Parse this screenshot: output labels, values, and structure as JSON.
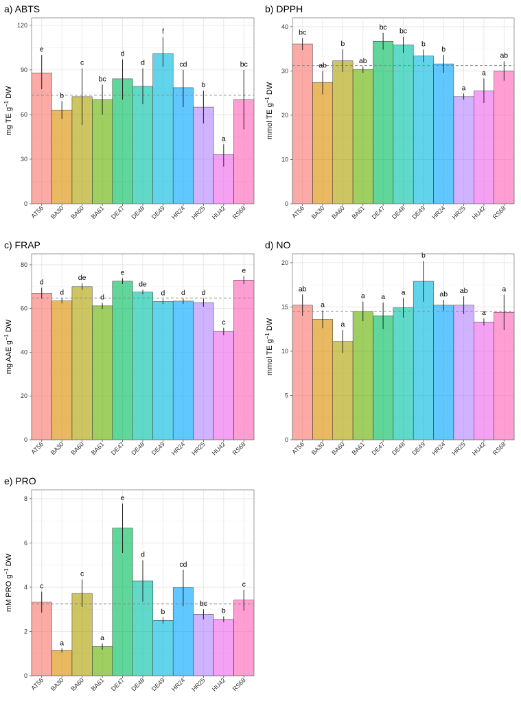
{
  "chart_data": [
    {
      "type": "bar",
      "title": "a) ABTS",
      "ylabel": "mg TE g-1 DW",
      "ylim": [
        0,
        125
      ],
      "yticks": [
        0,
        30,
        60,
        90,
        120
      ],
      "mean_line": 73,
      "grid": true,
      "categories": [
        "AT56",
        "BA30",
        "BA60",
        "BA61",
        "DE47",
        "DE48",
        "DE49",
        "HR24",
        "HR25",
        "HU42",
        "RS68"
      ],
      "values": [
        88,
        63,
        72,
        70,
        84,
        79,
        101,
        78,
        65,
        33,
        70
      ],
      "err_low": [
        77,
        57,
        53,
        60,
        70,
        67,
        92,
        65,
        54,
        25,
        50
      ],
      "err_high": [
        100,
        69,
        91,
        80,
        97,
        91,
        112,
        90,
        76,
        40,
        90
      ],
      "letters": [
        "e",
        "b",
        "c",
        "bc",
        "d",
        "d",
        "f",
        "cd",
        "b",
        "a",
        "bc"
      ]
    },
    {
      "type": "bar",
      "title": "b) DPPH",
      "ylabel": "mmol TE g-1 DW",
      "ylim": [
        0,
        42
      ],
      "yticks": [
        0,
        10,
        20,
        30,
        40
      ],
      "mean_line": 31.2,
      "grid": true,
      "categories": [
        "AT56",
        "BA30",
        "BA60",
        "BA61",
        "DE47",
        "DE48",
        "DE49",
        "HR24",
        "HR25",
        "HU42",
        "RS68"
      ],
      "values": [
        36.1,
        27.4,
        32.3,
        30.3,
        36.7,
        35.9,
        33.4,
        31.6,
        24.2,
        25.5,
        30.0
      ],
      "err_low": [
        34.7,
        24.7,
        29.8,
        29.6,
        34.8,
        34.1,
        32.0,
        29.6,
        23.5,
        22.8,
        27.8
      ],
      "err_high": [
        37.4,
        30.0,
        34.9,
        31.0,
        38.6,
        37.7,
        34.8,
        33.6,
        24.9,
        28.3,
        32.2
      ],
      "letters": [
        "bc",
        "ab",
        "b",
        "ab",
        "bc",
        "bc",
        "b",
        "b",
        "a",
        "a",
        "ab"
      ]
    },
    {
      "type": "bar",
      "title": "c) FRAP",
      "ylabel": "mg AAE g-1 DW",
      "ylim": [
        0,
        85
      ],
      "yticks": [
        0,
        20,
        40,
        60,
        80
      ],
      "mean_line": 64.8,
      "grid": true,
      "categories": [
        "AT56",
        "BA30",
        "BA60",
        "BA61",
        "DE47",
        "DE48",
        "DE49",
        "HR24",
        "HR25",
        "HU42",
        "RS68"
      ],
      "values": [
        67.0,
        63.5,
        70.0,
        61.2,
        72.5,
        67.5,
        63.2,
        63.4,
        62.7,
        49.5,
        73.0
      ],
      "err_low": [
        64.5,
        62.3,
        68.5,
        59.8,
        71.2,
        66.5,
        62.0,
        62.2,
        60.8,
        47.8,
        71.2
      ],
      "err_high": [
        69.5,
        64.7,
        71.5,
        62.6,
        73.8,
        68.5,
        64.4,
        64.6,
        64.6,
        51.2,
        74.8
      ],
      "letters": [
        "d",
        "d",
        "de",
        "d",
        "e",
        "de",
        "d",
        "d",
        "d",
        "c",
        "e"
      ]
    },
    {
      "type": "bar",
      "title": "d) NO",
      "ylabel": "mmol TE g-1 DW",
      "ylim": [
        0,
        21
      ],
      "yticks": [
        0,
        5,
        10,
        15,
        20
      ],
      "mean_line": 14.5,
      "grid": true,
      "categories": [
        "AT56",
        "BA30",
        "BA60",
        "BA61",
        "DE47",
        "DE48",
        "DE49",
        "HR24",
        "HR25",
        "HU42",
        "RS68"
      ],
      "values": [
        15.2,
        13.6,
        11.1,
        14.5,
        14.0,
        14.9,
        17.9,
        15.2,
        15.2,
        13.3,
        14.4
      ],
      "err_low": [
        14.0,
        12.6,
        9.8,
        13.4,
        12.5,
        13.8,
        15.6,
        14.6,
        14.2,
        12.9,
        12.4
      ],
      "err_high": [
        16.4,
        14.6,
        12.4,
        15.6,
        15.5,
        16.0,
        20.2,
        15.8,
        16.2,
        13.7,
        16.4
      ],
      "letters": [
        "ab",
        "a",
        "a",
        "a",
        "a",
        "a",
        "b",
        "ab",
        "ab",
        "a",
        "a"
      ]
    },
    {
      "type": "bar",
      "title": "e) PRO",
      "ylabel": "mM PRO g-1 DW",
      "ylim": [
        0,
        8.4
      ],
      "yticks": [
        0,
        2,
        4,
        6,
        8
      ],
      "mean_line": 3.25,
      "grid": true,
      "categories": [
        "AT56",
        "BA30",
        "BA60",
        "BA61",
        "DE47",
        "DE48",
        "DE49",
        "HR24",
        "HR25",
        "HU42",
        "RS68"
      ],
      "values": [
        3.33,
        1.14,
        3.72,
        1.32,
        6.67,
        4.28,
        2.5,
        3.98,
        2.78,
        2.55,
        3.42
      ],
      "err_low": [
        2.85,
        1.05,
        3.1,
        1.18,
        5.55,
        3.35,
        2.36,
        3.15,
        2.55,
        2.42,
        2.95
      ],
      "err_high": [
        3.8,
        1.23,
        4.35,
        1.46,
        7.78,
        5.22,
        2.64,
        4.78,
        3.0,
        2.68,
        3.88
      ],
      "letters": [
        "c",
        "a",
        "c",
        "a",
        "e",
        "d",
        "b",
        "cd",
        "bc",
        "b",
        "c"
      ]
    }
  ],
  "colors": [
    "#F8766D",
    "#DB8E00",
    "#AEA200",
    "#64B200",
    "#00BD5C",
    "#00C1A7",
    "#00BADE",
    "#00A6FF",
    "#B385FF",
    "#EF67EB",
    "#FF63B6"
  ],
  "panels": [
    {
      "title": "a) ABTS",
      "ylabel": "mg TE g-1 DW"
    },
    {
      "title": "b) DPPH",
      "ylabel": "mmol TE g-1 DW"
    },
    {
      "title": "c) FRAP",
      "ylabel": "mg AAE g-1 DW"
    },
    {
      "title": "d) NO",
      "ylabel": "mmol TE g-1 DW"
    },
    {
      "title": "e) PRO",
      "ylabel": "mM PRO g-1 DW"
    }
  ]
}
